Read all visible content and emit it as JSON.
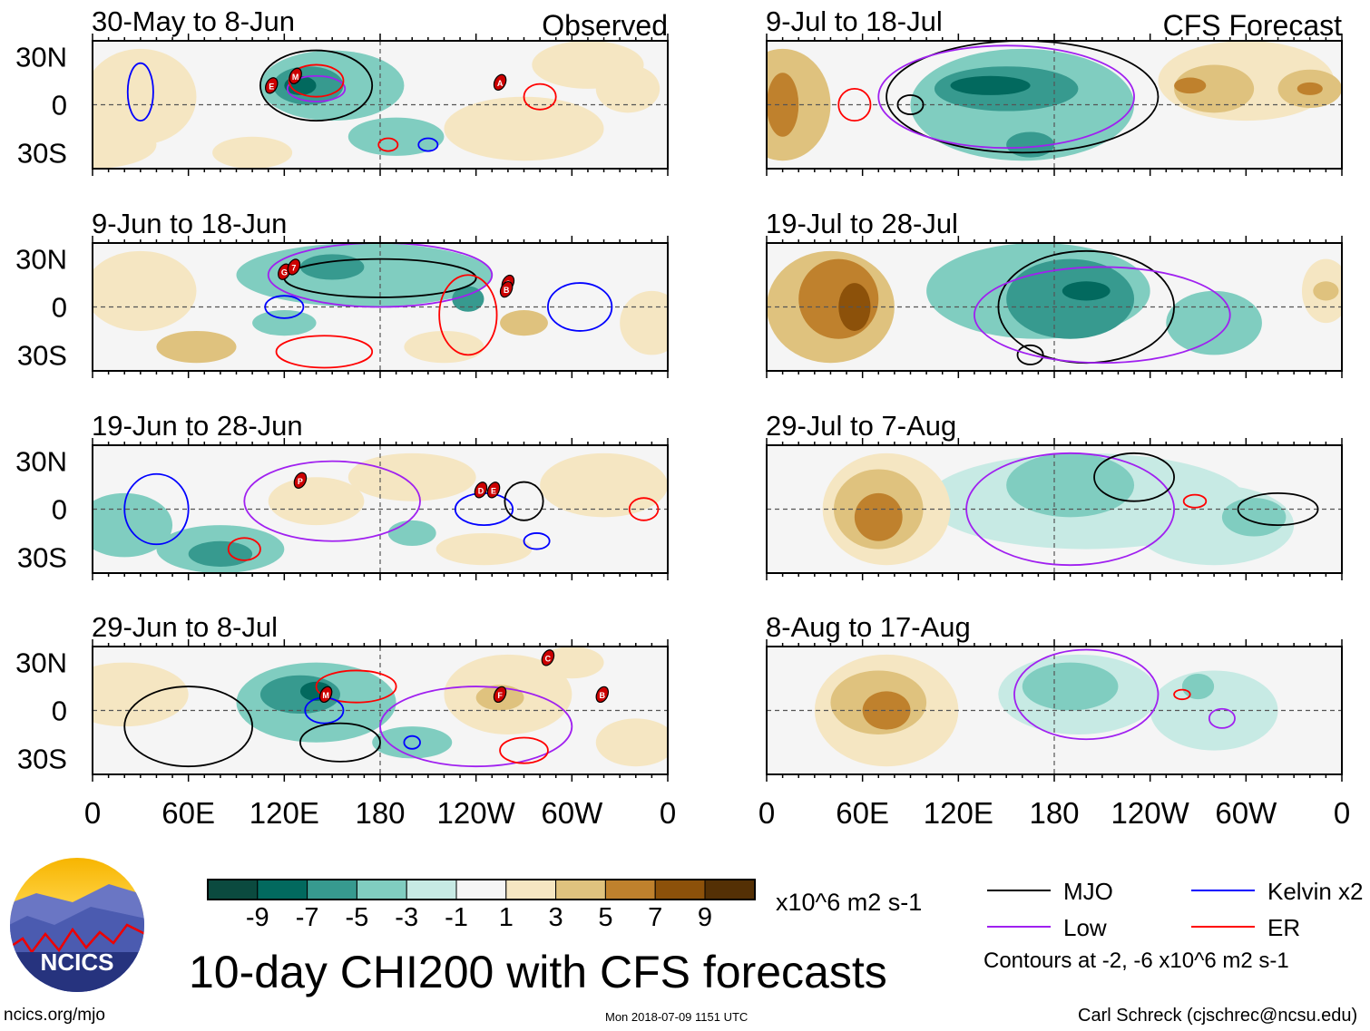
{
  "title": "10-day CHI200 with CFS forecasts",
  "units": "x10^6 m2 s-1",
  "site": "ncics.org/mjo",
  "timestamp": "Mon 2018-07-09 1151 UTC",
  "author": "Carl Schreck (cjschrec@ncsu.edu)",
  "logo_text": "NCICS",
  "column_labels": {
    "left": "Observed",
    "right": "CFS Forecast"
  },
  "lat_labels": [
    "30N",
    "0",
    "30S"
  ],
  "lon_labels": [
    "0",
    "60E",
    "120E",
    "180",
    "120W",
    "60W",
    "0"
  ],
  "colorbar": {
    "labels": [
      "-9",
      "-7",
      "-5",
      "-3",
      "-1",
      "1",
      "3",
      "5",
      "7",
      "9"
    ],
    "colors": [
      "#0b4a3f",
      "#02695e",
      "#379a8f",
      "#80cdc0",
      "#c7eae4",
      "#f5f5f5",
      "#f5e6c2",
      "#dfc27e",
      "#bf812d",
      "#8c510a",
      "#543005"
    ]
  },
  "legend": {
    "items": [
      {
        "label": "MJO",
        "color": "#000000"
      },
      {
        "label": "Kelvin x2",
        "color": "#0000ff"
      },
      {
        "label": "Low",
        "color": "#a020f0"
      },
      {
        "label": "ER",
        "color": "#ff0000"
      }
    ],
    "note": "Contours at -2, -6 x10^6 m2 s-1"
  },
  "chart_data": {
    "type": "heatmap",
    "lon_range": [
      0,
      360
    ],
    "lat_range": [
      -40,
      40
    ],
    "panels": [
      {
        "title": "30-May to 8-Jun",
        "column": "left",
        "blobs": [
          [
            30,
            5,
            35,
            30,
            3
          ],
          [
            0,
            -25,
            40,
            15,
            3
          ],
          [
            150,
            12,
            45,
            22,
            -3
          ],
          [
            100,
            -30,
            25,
            10,
            3
          ],
          [
            135,
            12,
            22,
            12,
            -5
          ],
          [
            130,
            12,
            10,
            6,
            -7
          ],
          [
            190,
            -20,
            30,
            12,
            -3
          ],
          [
            270,
            -15,
            50,
            20,
            3
          ],
          [
            310,
            25,
            35,
            15,
            3
          ],
          [
            335,
            10,
            20,
            15,
            3
          ]
        ],
        "contours": [
          [
            "mjo",
            140,
            12,
            35,
            22
          ],
          [
            "low",
            140,
            10,
            18,
            8
          ],
          [
            "er",
            140,
            15,
            17,
            10
          ],
          [
            "kelvin",
            30,
            8,
            8,
            18
          ],
          [
            "er",
            185,
            -25,
            6,
            4
          ],
          [
            "kelvin",
            210,
            -25,
            6,
            4
          ],
          [
            "er",
            280,
            5,
            10,
            8
          ]
        ],
        "markers": [
          [
            "E",
            112,
            12
          ],
          [
            "M",
            127,
            18
          ],
          [
            "A",
            255,
            14
          ]
        ]
      },
      {
        "title": "9-Jun to 18-Jun",
        "column": "left",
        "blobs": [
          [
            30,
            10,
            35,
            25,
            3
          ],
          [
            65,
            -25,
            25,
            10,
            5
          ],
          [
            170,
            20,
            80,
            20,
            -3
          ],
          [
            150,
            25,
            20,
            8,
            -5
          ],
          [
            235,
            5,
            10,
            8,
            -5
          ],
          [
            120,
            -10,
            20,
            8,
            -3
          ],
          [
            220,
            -25,
            25,
            10,
            3
          ],
          [
            270,
            -10,
            15,
            8,
            5
          ],
          [
            350,
            -10,
            20,
            20,
            3
          ]
        ],
        "contours": [
          [
            "mjo",
            180,
            18,
            60,
            12
          ],
          [
            "low",
            180,
            20,
            70,
            20
          ],
          [
            "er",
            235,
            -5,
            18,
            25
          ],
          [
            "er",
            145,
            -28,
            30,
            10
          ],
          [
            "kelvin",
            305,
            0,
            20,
            15
          ],
          [
            "kelvin",
            120,
            0,
            12,
            7
          ]
        ],
        "markers": [
          [
            "G",
            120,
            22
          ],
          [
            "7",
            126,
            25
          ],
          [
            "C",
            260,
            15
          ],
          [
            "B",
            259,
            11
          ]
        ]
      },
      {
        "title": "19-Jun to 28-Jun",
        "column": "left",
        "blobs": [
          [
            80,
            -25,
            40,
            15,
            -3
          ],
          [
            80,
            -28,
            20,
            8,
            -5
          ],
          [
            20,
            -10,
            30,
            20,
            -3
          ],
          [
            140,
            5,
            30,
            15,
            3
          ],
          [
            200,
            20,
            40,
            15,
            3
          ],
          [
            245,
            -25,
            30,
            10,
            3
          ],
          [
            320,
            15,
            40,
            20,
            3
          ],
          [
            200,
            -15,
            15,
            8,
            -3
          ]
        ],
        "contours": [
          [
            "kelvin",
            40,
            0,
            20,
            22
          ],
          [
            "er",
            95,
            -25,
            10,
            7
          ],
          [
            "low",
            150,
            5,
            55,
            25
          ],
          [
            "kelvin",
            245,
            0,
            18,
            10
          ],
          [
            "kelvin",
            278,
            -20,
            8,
            5
          ],
          [
            "er",
            345,
            0,
            9,
            7
          ],
          [
            "mjo",
            270,
            5,
            12,
            12
          ]
        ],
        "markers": [
          [
            "P",
            130,
            18
          ],
          [
            "D",
            243,
            12
          ],
          [
            "E",
            251,
            12
          ]
        ]
      },
      {
        "title": "29-Jun to 8-Jul",
        "column": "left",
        "blobs": [
          [
            20,
            10,
            40,
            20,
            3
          ],
          [
            140,
            5,
            50,
            25,
            -3
          ],
          [
            130,
            10,
            25,
            12,
            -5
          ],
          [
            140,
            12,
            10,
            6,
            -7
          ],
          [
            260,
            10,
            40,
            25,
            3
          ],
          [
            255,
            8,
            15,
            8,
            5
          ],
          [
            200,
            -20,
            25,
            10,
            -3
          ],
          [
            300,
            30,
            20,
            10,
            3
          ],
          [
            340,
            -20,
            25,
            15,
            3
          ]
        ],
        "contours": [
          [
            "er",
            165,
            15,
            25,
            10
          ],
          [
            "kelvin",
            145,
            0,
            12,
            8
          ],
          [
            "mjo",
            60,
            -10,
            40,
            25
          ],
          [
            "mjo",
            155,
            -20,
            25,
            12
          ],
          [
            "low",
            240,
            -10,
            60,
            25
          ],
          [
            "er",
            270,
            -25,
            15,
            8
          ],
          [
            "kelvin",
            200,
            -20,
            5,
            4
          ]
        ],
        "markers": [
          [
            "M",
            146,
            10
          ],
          [
            "F",
            255,
            10
          ],
          [
            "C",
            285,
            33
          ],
          [
            "B",
            319,
            10
          ]
        ]
      },
      {
        "title": "9-Jul to 18-Jul",
        "column": "right",
        "blobs": [
          [
            10,
            0,
            30,
            35,
            5
          ],
          [
            10,
            0,
            10,
            20,
            7
          ],
          [
            160,
            0,
            70,
            35,
            -3
          ],
          [
            150,
            10,
            45,
            14,
            -5
          ],
          [
            140,
            12,
            25,
            6,
            -7
          ],
          [
            165,
            -25,
            15,
            8,
            -5
          ],
          [
            300,
            15,
            55,
            25,
            3
          ],
          [
            280,
            10,
            25,
            15,
            5
          ],
          [
            265,
            12,
            10,
            5,
            7
          ],
          [
            340,
            10,
            20,
            12,
            5
          ],
          [
            340,
            10,
            8,
            4,
            7
          ]
        ],
        "contours": [
          [
            "mjo",
            160,
            5,
            85,
            35
          ],
          [
            "er",
            55,
            0,
            10,
            10
          ],
          [
            "low",
            150,
            5,
            80,
            32
          ],
          [
            "mjo",
            90,
            0,
            8,
            6
          ]
        ],
        "markers": []
      },
      {
        "title": "19-Jul to 28-Jul",
        "column": "right",
        "blobs": [
          [
            40,
            0,
            40,
            35,
            5
          ],
          [
            45,
            5,
            25,
            25,
            7
          ],
          [
            55,
            0,
            10,
            15,
            9
          ],
          [
            170,
            10,
            70,
            30,
            -3
          ],
          [
            190,
            5,
            40,
            25,
            -5
          ],
          [
            200,
            10,
            15,
            6,
            -7
          ],
          [
            280,
            -10,
            30,
            20,
            -3
          ],
          [
            350,
            10,
            15,
            20,
            3
          ],
          [
            350,
            10,
            8,
            6,
            5
          ]
        ],
        "contours": [
          [
            "mjo",
            200,
            0,
            55,
            35
          ],
          [
            "mjo",
            165,
            -30,
            8,
            6
          ],
          [
            "low",
            210,
            -5,
            80,
            30
          ]
        ],
        "markers": []
      },
      {
        "title": "29-Jul to 7-Aug",
        "column": "right",
        "blobs": [
          [
            75,
            0,
            40,
            35,
            3
          ],
          [
            70,
            0,
            28,
            25,
            5
          ],
          [
            70,
            -5,
            15,
            15,
            7
          ],
          [
            200,
            5,
            100,
            30,
            -1
          ],
          [
            190,
            15,
            40,
            20,
            -3
          ],
          [
            280,
            -10,
            50,
            25,
            -1
          ],
          [
            305,
            -5,
            20,
            12,
            -3
          ]
        ],
        "contours": [
          [
            "low",
            190,
            0,
            65,
            35
          ],
          [
            "mjo",
            230,
            20,
            25,
            15
          ],
          [
            "mjo",
            320,
            0,
            25,
            10
          ],
          [
            "er",
            268,
            5,
            7,
            4
          ]
        ],
        "markers": []
      },
      {
        "title": "8-Aug to 17-Aug",
        "column": "right",
        "blobs": [
          [
            75,
            0,
            45,
            35,
            3
          ],
          [
            70,
            5,
            30,
            20,
            5
          ],
          [
            75,
            0,
            15,
            12,
            7
          ],
          [
            195,
            10,
            50,
            25,
            -1
          ],
          [
            190,
            15,
            30,
            15,
            -3
          ],
          [
            280,
            0,
            40,
            25,
            -1
          ],
          [
            270,
            15,
            10,
            8,
            -3
          ]
        ],
        "contours": [
          [
            "low",
            200,
            10,
            45,
            28
          ],
          [
            "er",
            260,
            10,
            5,
            3
          ],
          [
            "low",
            285,
            -5,
            8,
            6
          ]
        ],
        "markers": []
      }
    ]
  }
}
